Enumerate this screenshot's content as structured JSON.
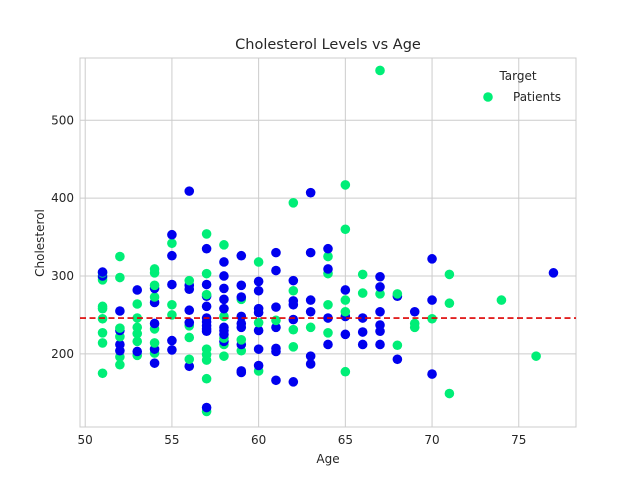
{
  "chart_data": {
    "type": "scatter",
    "title": "Cholesterol Levels vs Age",
    "xlabel": "Age",
    "ylabel": "Cholesterol",
    "xlim": [
      49.7,
      78.3
    ],
    "ylim": [
      106,
      580
    ],
    "xticks": [
      50,
      55,
      60,
      65,
      70,
      75
    ],
    "yticks": [
      200,
      300,
      400,
      500
    ],
    "grid": true,
    "legend": {
      "title": "Target",
      "position": "top-right",
      "entries": [
        "Patients"
      ]
    },
    "reference_line": {
      "y": 246,
      "style": "dashed",
      "color": "#dd0000"
    },
    "colors": {
      "target_0": "#0000ee",
      "target_1": "#00ee77"
    },
    "series": [
      {
        "name": "Patients",
        "points": [
          {
            "x": 51,
            "y": 175,
            "t": 1
          },
          {
            "x": 51,
            "y": 214,
            "t": 1
          },
          {
            "x": 51,
            "y": 227,
            "t": 1
          },
          {
            "x": 51,
            "y": 245,
            "t": 1
          },
          {
            "x": 51,
            "y": 258,
            "t": 1
          },
          {
            "x": 51,
            "y": 261,
            "t": 1
          },
          {
            "x": 51,
            "y": 295,
            "t": 1
          },
          {
            "x": 51,
            "y": 298,
            "t": 1
          },
          {
            "x": 51,
            "y": 300,
            "t": 0
          },
          {
            "x": 51,
            "y": 304,
            "t": 1
          },
          {
            "x": 51,
            "y": 305,
            "t": 0
          },
          {
            "x": 52,
            "y": 186,
            "t": 1
          },
          {
            "x": 52,
            "y": 196,
            "t": 1
          },
          {
            "x": 52,
            "y": 204,
            "t": 0
          },
          {
            "x": 52,
            "y": 212,
            "t": 0
          },
          {
            "x": 52,
            "y": 222,
            "t": 1
          },
          {
            "x": 52,
            "y": 230,
            "t": 0
          },
          {
            "x": 52,
            "y": 233,
            "t": 1
          },
          {
            "x": 52,
            "y": 255,
            "t": 0
          },
          {
            "x": 52,
            "y": 298,
            "t": 1
          },
          {
            "x": 52,
            "y": 325,
            "t": 1
          },
          {
            "x": 53,
            "y": 198,
            "t": 1
          },
          {
            "x": 53,
            "y": 203,
            "t": 0
          },
          {
            "x": 53,
            "y": 216,
            "t": 1
          },
          {
            "x": 53,
            "y": 226,
            "t": 1
          },
          {
            "x": 53,
            "y": 234,
            "t": 1
          },
          {
            "x": 53,
            "y": 246,
            "t": 1
          },
          {
            "x": 53,
            "y": 264,
            "t": 1
          },
          {
            "x": 53,
            "y": 282,
            "t": 0
          },
          {
            "x": 54,
            "y": 188,
            "t": 0
          },
          {
            "x": 54,
            "y": 201,
            "t": 1
          },
          {
            "x": 54,
            "y": 206,
            "t": 0
          },
          {
            "x": 54,
            "y": 214,
            "t": 1
          },
          {
            "x": 54,
            "y": 232,
            "t": 1
          },
          {
            "x": 54,
            "y": 239,
            "t": 0
          },
          {
            "x": 54,
            "y": 266,
            "t": 0
          },
          {
            "x": 54,
            "y": 273,
            "t": 1
          },
          {
            "x": 54,
            "y": 284,
            "t": 0
          },
          {
            "x": 54,
            "y": 288,
            "t": 1
          },
          {
            "x": 54,
            "y": 304,
            "t": 1
          },
          {
            "x": 54,
            "y": 309,
            "t": 1
          },
          {
            "x": 55,
            "y": 205,
            "t": 0
          },
          {
            "x": 55,
            "y": 217,
            "t": 0
          },
          {
            "x": 55,
            "y": 250,
            "t": 1
          },
          {
            "x": 55,
            "y": 263,
            "t": 1
          },
          {
            "x": 55,
            "y": 289,
            "t": 0
          },
          {
            "x": 55,
            "y": 326,
            "t": 0
          },
          {
            "x": 55,
            "y": 342,
            "t": 1
          },
          {
            "x": 55,
            "y": 353,
            "t": 0
          },
          {
            "x": 56,
            "y": 184,
            "t": 0
          },
          {
            "x": 56,
            "y": 193,
            "t": 1
          },
          {
            "x": 56,
            "y": 221,
            "t": 1
          },
          {
            "x": 56,
            "y": 236,
            "t": 1
          },
          {
            "x": 56,
            "y": 240,
            "t": 0
          },
          {
            "x": 56,
            "y": 256,
            "t": 0
          },
          {
            "x": 56,
            "y": 283,
            "t": 0
          },
          {
            "x": 56,
            "y": 288,
            "t": 0
          },
          {
            "x": 56,
            "y": 294,
            "t": 1
          },
          {
            "x": 56,
            "y": 409,
            "t": 0
          },
          {
            "x": 57,
            "y": 126,
            "t": 1
          },
          {
            "x": 57,
            "y": 131,
            "t": 0
          },
          {
            "x": 57,
            "y": 168,
            "t": 1
          },
          {
            "x": 57,
            "y": 192,
            "t": 1
          },
          {
            "x": 57,
            "y": 199,
            "t": 1
          },
          {
            "x": 57,
            "y": 206,
            "t": 1
          },
          {
            "x": 57,
            "y": 229,
            "t": 0
          },
          {
            "x": 57,
            "y": 232,
            "t": 0
          },
          {
            "x": 57,
            "y": 236,
            "t": 0
          },
          {
            "x": 57,
            "y": 241,
            "t": 0
          },
          {
            "x": 57,
            "y": 246,
            "t": 0
          },
          {
            "x": 57,
            "y": 261,
            "t": 0
          },
          {
            "x": 57,
            "y": 274,
            "t": 0
          },
          {
            "x": 57,
            "y": 276,
            "t": 1
          },
          {
            "x": 57,
            "y": 289,
            "t": 0
          },
          {
            "x": 57,
            "y": 303,
            "t": 1
          },
          {
            "x": 57,
            "y": 335,
            "t": 0
          },
          {
            "x": 57,
            "y": 354,
            "t": 1
          },
          {
            "x": 58,
            "y": 197,
            "t": 1
          },
          {
            "x": 58,
            "y": 212,
            "t": 1
          },
          {
            "x": 58,
            "y": 216,
            "t": 0
          },
          {
            "x": 58,
            "y": 220,
            "t": 1
          },
          {
            "x": 58,
            "y": 225,
            "t": 0
          },
          {
            "x": 58,
            "y": 230,
            "t": 0
          },
          {
            "x": 58,
            "y": 234,
            "t": 0
          },
          {
            "x": 58,
            "y": 248,
            "t": 1
          },
          {
            "x": 58,
            "y": 258,
            "t": 0
          },
          {
            "x": 58,
            "y": 270,
            "t": 0
          },
          {
            "x": 58,
            "y": 284,
            "t": 0
          },
          {
            "x": 58,
            "y": 300,
            "t": 0
          },
          {
            "x": 58,
            "y": 318,
            "t": 0
          },
          {
            "x": 58,
            "y": 340,
            "t": 1
          },
          {
            "x": 59,
            "y": 176,
            "t": 0
          },
          {
            "x": 59,
            "y": 178,
            "t": 0
          },
          {
            "x": 59,
            "y": 204,
            "t": 1
          },
          {
            "x": 59,
            "y": 212,
            "t": 0
          },
          {
            "x": 59,
            "y": 218,
            "t": 1
          },
          {
            "x": 59,
            "y": 234,
            "t": 0
          },
          {
            "x": 59,
            "y": 239,
            "t": 0
          },
          {
            "x": 59,
            "y": 248,
            "t": 0
          },
          {
            "x": 59,
            "y": 270,
            "t": 1
          },
          {
            "x": 59,
            "y": 273,
            "t": 0
          },
          {
            "x": 59,
            "y": 288,
            "t": 0
          },
          {
            "x": 59,
            "y": 326,
            "t": 0
          },
          {
            "x": 60,
            "y": 178,
            "t": 1
          },
          {
            "x": 60,
            "y": 185,
            "t": 0
          },
          {
            "x": 60,
            "y": 206,
            "t": 0
          },
          {
            "x": 60,
            "y": 230,
            "t": 0
          },
          {
            "x": 60,
            "y": 240,
            "t": 1
          },
          {
            "x": 60,
            "y": 253,
            "t": 0
          },
          {
            "x": 60,
            "y": 258,
            "t": 0
          },
          {
            "x": 60,
            "y": 281,
            "t": 0
          },
          {
            "x": 60,
            "y": 293,
            "t": 0
          },
          {
            "x": 60,
            "y": 318,
            "t": 1
          },
          {
            "x": 61,
            "y": 166,
            "t": 0
          },
          {
            "x": 61,
            "y": 203,
            "t": 0
          },
          {
            "x": 61,
            "y": 207,
            "t": 0
          },
          {
            "x": 61,
            "y": 234,
            "t": 0
          },
          {
            "x": 61,
            "y": 243,
            "t": 1
          },
          {
            "x": 61,
            "y": 260,
            "t": 0
          },
          {
            "x": 61,
            "y": 307,
            "t": 0
          },
          {
            "x": 61,
            "y": 330,
            "t": 0
          },
          {
            "x": 62,
            "y": 164,
            "t": 0
          },
          {
            "x": 62,
            "y": 209,
            "t": 1
          },
          {
            "x": 62,
            "y": 231,
            "t": 1
          },
          {
            "x": 62,
            "y": 244,
            "t": 0
          },
          {
            "x": 62,
            "y": 263,
            "t": 0
          },
          {
            "x": 62,
            "y": 268,
            "t": 0
          },
          {
            "x": 62,
            "y": 281,
            "t": 1
          },
          {
            "x": 62,
            "y": 294,
            "t": 0
          },
          {
            "x": 62,
            "y": 394,
            "t": 1
          },
          {
            "x": 63,
            "y": 187,
            "t": 0
          },
          {
            "x": 63,
            "y": 197,
            "t": 0
          },
          {
            "x": 63,
            "y": 234,
            "t": 1
          },
          {
            "x": 63,
            "y": 254,
            "t": 0
          },
          {
            "x": 63,
            "y": 269,
            "t": 0
          },
          {
            "x": 63,
            "y": 330,
            "t": 0
          },
          {
            "x": 63,
            "y": 407,
            "t": 0
          },
          {
            "x": 64,
            "y": 212,
            "t": 0
          },
          {
            "x": 64,
            "y": 227,
            "t": 1
          },
          {
            "x": 64,
            "y": 246,
            "t": 0
          },
          {
            "x": 64,
            "y": 263,
            "t": 1
          },
          {
            "x": 64,
            "y": 303,
            "t": 1
          },
          {
            "x": 64,
            "y": 309,
            "t": 0
          },
          {
            "x": 64,
            "y": 325,
            "t": 1
          },
          {
            "x": 64,
            "y": 335,
            "t": 0
          },
          {
            "x": 65,
            "y": 177,
            "t": 1
          },
          {
            "x": 65,
            "y": 225,
            "t": 0
          },
          {
            "x": 65,
            "y": 248,
            "t": 0
          },
          {
            "x": 65,
            "y": 254,
            "t": 1
          },
          {
            "x": 65,
            "y": 269,
            "t": 1
          },
          {
            "x": 65,
            "y": 282,
            "t": 0
          },
          {
            "x": 65,
            "y": 360,
            "t": 1
          },
          {
            "x": 65,
            "y": 417,
            "t": 1
          },
          {
            "x": 66,
            "y": 212,
            "t": 0
          },
          {
            "x": 66,
            "y": 228,
            "t": 0
          },
          {
            "x": 66,
            "y": 246,
            "t": 0
          },
          {
            "x": 66,
            "y": 278,
            "t": 1
          },
          {
            "x": 66,
            "y": 302,
            "t": 1
          },
          {
            "x": 67,
            "y": 212,
            "t": 0
          },
          {
            "x": 67,
            "y": 229,
            "t": 0
          },
          {
            "x": 67,
            "y": 237,
            "t": 0
          },
          {
            "x": 67,
            "y": 254,
            "t": 0
          },
          {
            "x": 67,
            "y": 277,
            "t": 1
          },
          {
            "x": 67,
            "y": 286,
            "t": 0
          },
          {
            "x": 67,
            "y": 299,
            "t": 0
          },
          {
            "x": 67,
            "y": 564,
            "t": 1
          },
          {
            "x": 68,
            "y": 193,
            "t": 0
          },
          {
            "x": 68,
            "y": 211,
            "t": 1
          },
          {
            "x": 68,
            "y": 274,
            "t": 0
          },
          {
            "x": 68,
            "y": 277,
            "t": 1
          },
          {
            "x": 69,
            "y": 234,
            "t": 1
          },
          {
            "x": 69,
            "y": 239,
            "t": 1
          },
          {
            "x": 69,
            "y": 254,
            "t": 0
          },
          {
            "x": 70,
            "y": 174,
            "t": 0
          },
          {
            "x": 70,
            "y": 245,
            "t": 1
          },
          {
            "x": 70,
            "y": 269,
            "t": 0
          },
          {
            "x": 70,
            "y": 322,
            "t": 0
          },
          {
            "x": 71,
            "y": 149,
            "t": 1
          },
          {
            "x": 71,
            "y": 265,
            "t": 1
          },
          {
            "x": 71,
            "y": 302,
            "t": 1
          },
          {
            "x": 74,
            "y": 269,
            "t": 1
          },
          {
            "x": 76,
            "y": 197,
            "t": 1
          },
          {
            "x": 77,
            "y": 304,
            "t": 0
          }
        ]
      }
    ]
  }
}
